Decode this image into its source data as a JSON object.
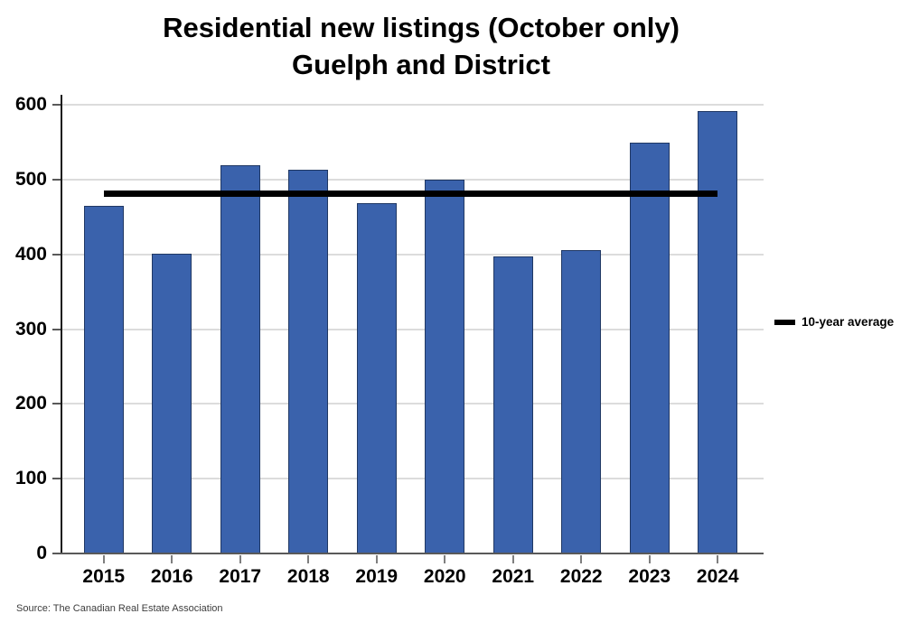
{
  "title": {
    "line1": "Residential new listings (October only)",
    "line2": "Guelph and District"
  },
  "legend": {
    "label": "10-year average"
  },
  "source": "Source: The Canadian Real Estate Association",
  "chart_data": {
    "type": "bar",
    "title": "Residential new listings (October only) Guelph and District",
    "categories": [
      "2015",
      "2016",
      "2017",
      "2018",
      "2019",
      "2020",
      "2021",
      "2022",
      "2023",
      "2024"
    ],
    "values": [
      465,
      401,
      519,
      513,
      469,
      500,
      397,
      406,
      549,
      591
    ],
    "series_name": "New listings",
    "average_line": {
      "label": "10-year average",
      "value": 481
    },
    "xlabel": "",
    "ylabel": "",
    "ylim": [
      0,
      600
    ],
    "yticks": [
      0,
      100,
      200,
      300,
      400,
      500,
      600
    ],
    "grid": true,
    "legend_position": "right",
    "colors": {
      "bar_fill": "#3A62AC",
      "bar_border": "#203864",
      "average_line": "#000000",
      "gridline": "#DCDCDC",
      "x_axis": "#595959",
      "y_axis": "#1a1a1a",
      "tick": "#7F7F7F"
    }
  }
}
